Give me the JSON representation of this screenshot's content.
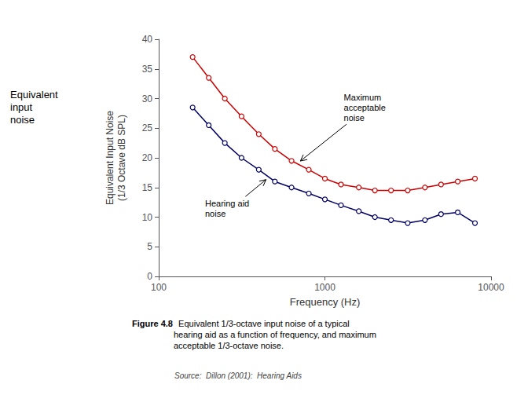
{
  "chart_data": {
    "type": "line",
    "xlabel": "Frequency (Hz)",
    "ylabel": "Equivalent Input Noise\n(1/3 Octave dB SPL)",
    "log": "x",
    "grid": false,
    "xlim": [
      100,
      10000
    ],
    "ylim": [
      0,
      40
    ],
    "xticks": [
      100,
      1000,
      10000
    ],
    "yticks": [
      0,
      5,
      10,
      15,
      20,
      25,
      30,
      35,
      40
    ],
    "x": [
      160,
      200,
      250,
      315,
      400,
      500,
      630,
      800,
      1000,
      1250,
      1600,
      2000,
      2500,
      3150,
      4000,
      5000,
      6300,
      8000
    ],
    "series": [
      {
        "color": "#cc0000",
        "marker": "circle",
        "line_style": "solid",
        "values": [
          37.0,
          33.5,
          30.0,
          27.0,
          24.0,
          21.5,
          19.5,
          18.0,
          16.5,
          15.5,
          15.0,
          14.5,
          14.5,
          14.5,
          15.0,
          15.5,
          16.0,
          16.5
        ]
      },
      {
        "color": "#000066",
        "marker": "circle",
        "line_style": "solid",
        "values": [
          28.5,
          25.5,
          22.5,
          20.0,
          18.0,
          16.0,
          15.0,
          14.0,
          13.0,
          12.0,
          11.0,
          10.0,
          9.5,
          9.0,
          9.5,
          10.5,
          10.8,
          9.0
        ]
      }
    ],
    "annotations": [
      {
        "text": "Maximum\nacceptable\nnoise",
        "x": 700,
        "y": 19.3,
        "text_x": 1300,
        "text_y": 28.5
      },
      {
        "text": "Hearing aid\nnoise",
        "x": 450,
        "y": 16.5,
        "text_x": 190,
        "text_y": 11.5
      }
    ],
    "side_label": "Equivalent\ninput\nnoise",
    "caption_title": "Figure 4.8",
    "caption": "  Equivalent 1/3-octave input noise of a typical\nhearing aid as a function of frequency, and maximum\nacceptable 1/3-octave noise.",
    "source": "Source:  Dillon (2001):  Hearing Aids"
  }
}
